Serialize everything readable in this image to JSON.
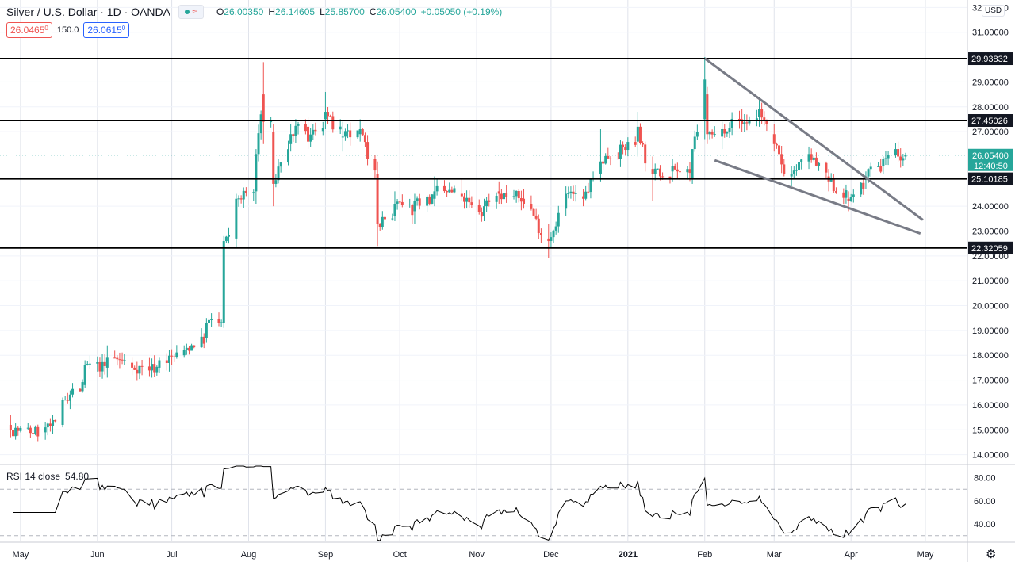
{
  "header": {
    "title": "Silver / U.S. Dollar · 1D · OANDA",
    "ohlc": [
      {
        "k": "O",
        "v": "26.00350"
      },
      {
        "k": "H",
        "v": "26.14605"
      },
      {
        "k": "L",
        "v": "25.85700"
      },
      {
        "k": "C",
        "v": "26.05400"
      }
    ],
    "change": "+0.05050 (+0.19%)",
    "sell_price": "26.046",
    "sell_sup": "5",
    "sell_sup2": "0",
    "spread": "150.0",
    "buy_price": "26.061",
    "buy_sup": "5",
    "buy_sup2": "0",
    "currency": "USD"
  },
  "rsi": {
    "label": "RSI 14 close",
    "value": "54.80",
    "levels": [
      70,
      30
    ],
    "ticks": [
      "80.00",
      "60.00",
      "40.00"
    ],
    "tick_values": [
      80,
      60,
      40
    ]
  },
  "colors": {
    "up": "#26a69a",
    "down": "#ef5350",
    "line": "#000000",
    "trend": "#787b86",
    "grid": "#e0e3eb",
    "price_badge": "#26a69a"
  },
  "chart_data": {
    "type": "candlestick",
    "symbol": "Silver / U.S. Dollar",
    "interval": "1D",
    "x_labels": [
      "May",
      "Jun",
      "Jul",
      "Aug",
      "Sep",
      "Oct",
      "Nov",
      "Dec",
      "2021",
      "Feb",
      "Mar",
      "Apr",
      "May"
    ],
    "y_ticks": [
      "32.00000",
      "31.00000",
      "29.00000",
      "28.00000",
      "27.00000",
      "24.00000",
      "23.00000",
      "22.00000",
      "21.00000",
      "20.00000",
      "19.00000",
      "18.00000",
      "17.00000",
      "16.00000",
      "15.00000",
      "14.00000"
    ],
    "y_tick_values": [
      32,
      31,
      29,
      28,
      27,
      24,
      23,
      22,
      21,
      20,
      19,
      18,
      17,
      16,
      15,
      14
    ],
    "ylim": [
      13.7,
      32.3
    ],
    "horizontal_levels": [
      {
        "value": 29.93832,
        "label": "29.93832"
      },
      {
        "value": 27.45026,
        "label": "27.45026"
      },
      {
        "value": 25.10185,
        "label": "25.10185"
      },
      {
        "value": 22.32059,
        "label": "22.32059"
      }
    ],
    "last_price": {
      "value": 26.054,
      "label": "26.05400",
      "countdown": "12:40:50"
    },
    "trendlines": [
      {
        "from": {
          "date": "2021-02-01",
          "value": 29.95
        },
        "to": {
          "date": "2021-04-30",
          "value": 23.45
        }
      },
      {
        "from": {
          "date": "2021-02-05",
          "value": 25.85
        },
        "to": {
          "date": "2021-04-29",
          "value": 22.9
        }
      }
    ],
    "anchors": [
      [
        "2020-04-27",
        15.2,
        15.6,
        14.7,
        15.0
      ],
      [
        "2020-05-11",
        14.9,
        15.3,
        14.6,
        15.1
      ],
      [
        "2020-05-18",
        15.2,
        16.3,
        15.1,
        16.2
      ],
      [
        "2020-05-27",
        16.8,
        17.8,
        16.7,
        17.6
      ],
      [
        "2020-06-05",
        17.5,
        18.4,
        17.1,
        17.9
      ],
      [
        "2020-06-15",
        17.7,
        17.9,
        17.2,
        17.5
      ],
      [
        "2020-06-26",
        17.5,
        17.9,
        17.3,
        17.8
      ],
      [
        "2020-07-06",
        18.0,
        18.4,
        17.9,
        18.2
      ],
      [
        "2020-07-15",
        18.7,
        19.5,
        18.5,
        19.3
      ],
      [
        "2020-07-22",
        19.3,
        22.8,
        19.1,
        22.6
      ],
      [
        "2020-07-27",
        22.7,
        24.5,
        22.3,
        24.3
      ],
      [
        "2020-08-04",
        24.6,
        26.3,
        24.1,
        26.1
      ],
      [
        "2020-08-07",
        28.5,
        29.8,
        26.5,
        27.4
      ],
      [
        "2020-08-11",
        27.0,
        27.3,
        24.0,
        24.9
      ],
      [
        "2020-08-18",
        26.5,
        27.3,
        26.2,
        26.9
      ],
      [
        "2020-08-25",
        27.2,
        27.6,
        26.3,
        26.6
      ],
      [
        "2020-09-01",
        27.5,
        28.6,
        27.1,
        27.8
      ],
      [
        "2020-09-08",
        26.8,
        27.4,
        26.2,
        26.8
      ],
      [
        "2020-09-15",
        26.9,
        27.5,
        26.6,
        27.1
      ],
      [
        "2020-09-22",
        25.3,
        25.8,
        22.4,
        23.3
      ],
      [
        "2020-09-29",
        23.6,
        24.6,
        23.4,
        24.1
      ],
      [
        "2020-10-07",
        23.8,
        24.5,
        23.3,
        24.2
      ],
      [
        "2020-10-15",
        24.3,
        25.2,
        24.0,
        24.6
      ],
      [
        "2020-10-26",
        24.5,
        25.1,
        24.2,
        24.4
      ],
      [
        "2020-11-04",
        23.6,
        24.3,
        23.4,
        24.0
      ],
      [
        "2020-11-10",
        24.6,
        25.0,
        24.1,
        24.5
      ],
      [
        "2020-11-20",
        24.3,
        24.7,
        23.9,
        24.1
      ],
      [
        "2020-11-30",
        22.7,
        23.3,
        21.9,
        22.6
      ],
      [
        "2020-12-07",
        23.9,
        24.8,
        23.6,
        24.5
      ],
      [
        "2020-12-14",
        24.4,
        24.7,
        24.0,
        24.3
      ],
      [
        "2020-12-21",
        25.3,
        27.1,
        25.0,
        25.8
      ],
      [
        "2021-01-05",
        26.6,
        27.8,
        26.0,
        27.2
      ],
      [
        "2021-01-11",
        25.5,
        26.0,
        24.2,
        25.3
      ],
      [
        "2021-01-19",
        25.4,
        25.9,
        25.0,
        25.6
      ],
      [
        "2021-01-27",
        25.1,
        26.3,
        24.9,
        26.3
      ],
      [
        "2021-02-01",
        27.5,
        30.0,
        26.7,
        29.1
      ],
      [
        "2021-02-02",
        28.5,
        28.8,
        26.5,
        26.9
      ],
      [
        "2021-02-08",
        26.8,
        27.4,
        26.3,
        27.1
      ],
      [
        "2021-02-16",
        27.5,
        27.9,
        27.0,
        27.3
      ],
      [
        "2021-02-23",
        27.6,
        28.3,
        27.2,
        27.9
      ],
      [
        "2021-03-01",
        26.9,
        27.3,
        26.2,
        26.5
      ],
      [
        "2021-03-08",
        25.2,
        25.6,
        24.8,
        25.3
      ],
      [
        "2021-03-15",
        25.8,
        26.4,
        25.5,
        26.1
      ],
      [
        "2021-03-23",
        25.2,
        25.5,
        24.6,
        25.0
      ],
      [
        "2021-03-31",
        24.3,
        24.6,
        23.8,
        24.2
      ],
      [
        "2021-04-07",
        25.1,
        25.4,
        24.7,
        25.2
      ],
      [
        "2021-04-14",
        25.6,
        26.0,
        25.3,
        25.9
      ],
      [
        "2021-04-20",
        26.3,
        26.6,
        25.8,
        26.0
      ],
      [
        "2021-04-23",
        26.0,
        26.15,
        25.86,
        26.054
      ]
    ]
  }
}
